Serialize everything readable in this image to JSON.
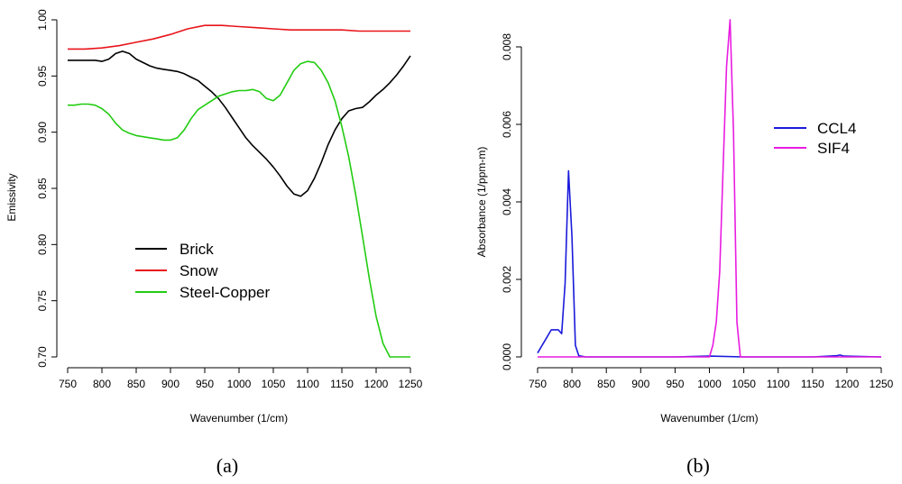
{
  "chart_data": [
    {
      "type": "line",
      "caption": "(a)",
      "xlabel": "Wavenumber (1/cm)",
      "ylabel": "Emissivity",
      "xlim": [
        750,
        1250
      ],
      "ylim": [
        0.7,
        1.0
      ],
      "xticks": [
        "750",
        "800",
        "850",
        "900",
        "950",
        "1000",
        "1050",
        "1100",
        "1150",
        "1200",
        "1250"
      ],
      "yticks": [
        "0.70",
        "0.75",
        "0.80",
        "0.85",
        "0.90",
        "0.95",
        "1.00"
      ],
      "legend_position": "middle-left",
      "series": [
        {
          "name": "Brick",
          "color": "#000000",
          "x": [
            750,
            770,
            790,
            800,
            810,
            820,
            830,
            840,
            850,
            860,
            870,
            880,
            890,
            900,
            910,
            920,
            930,
            940,
            950,
            960,
            970,
            980,
            990,
            1000,
            1010,
            1020,
            1030,
            1040,
            1050,
            1060,
            1070,
            1080,
            1090,
            1100,
            1110,
            1120,
            1130,
            1140,
            1150,
            1160,
            1170,
            1180,
            1190,
            1200,
            1210,
            1220,
            1230,
            1240,
            1250
          ],
          "y": [
            0.964,
            0.964,
            0.964,
            0.963,
            0.965,
            0.97,
            0.972,
            0.97,
            0.965,
            0.962,
            0.959,
            0.957,
            0.956,
            0.955,
            0.954,
            0.952,
            0.949,
            0.946,
            0.941,
            0.936,
            0.93,
            0.922,
            0.913,
            0.904,
            0.895,
            0.888,
            0.882,
            0.876,
            0.869,
            0.861,
            0.852,
            0.845,
            0.843,
            0.848,
            0.859,
            0.873,
            0.889,
            0.902,
            0.912,
            0.919,
            0.921,
            0.922,
            0.927,
            0.933,
            0.938,
            0.944,
            0.951,
            0.959,
            0.968
          ]
        },
        {
          "name": "Snow",
          "color": "#e8141b",
          "x": [
            750,
            775,
            800,
            825,
            850,
            875,
            900,
            925,
            950,
            975,
            1000,
            1025,
            1050,
            1075,
            1100,
            1125,
            1150,
            1175,
            1200,
            1225,
            1250
          ],
          "y": [
            0.974,
            0.974,
            0.975,
            0.977,
            0.98,
            0.983,
            0.987,
            0.992,
            0.995,
            0.995,
            0.994,
            0.993,
            0.992,
            0.991,
            0.991,
            0.991,
            0.991,
            0.99,
            0.99,
            0.99,
            0.99
          ]
        },
        {
          "name": "Steel-Copper",
          "color": "#22cc11",
          "x": [
            750,
            760,
            770,
            780,
            790,
            800,
            810,
            820,
            830,
            840,
            850,
            860,
            870,
            880,
            890,
            900,
            910,
            920,
            930,
            940,
            950,
            960,
            970,
            980,
            990,
            1000,
            1010,
            1020,
            1030,
            1040,
            1050,
            1060,
            1070,
            1080,
            1090,
            1100,
            1110,
            1120,
            1130,
            1140,
            1150,
            1160,
            1170,
            1180,
            1190,
            1200,
            1210,
            1220,
            1230,
            1240,
            1250
          ],
          "y": [
            0.924,
            0.924,
            0.925,
            0.925,
            0.924,
            0.921,
            0.916,
            0.908,
            0.902,
            0.899,
            0.897,
            0.896,
            0.895,
            0.894,
            0.893,
            0.893,
            0.895,
            0.902,
            0.912,
            0.92,
            0.924,
            0.928,
            0.932,
            0.934,
            0.936,
            0.937,
            0.937,
            0.938,
            0.936,
            0.93,
            0.928,
            0.933,
            0.944,
            0.955,
            0.961,
            0.963,
            0.962,
            0.955,
            0.944,
            0.928,
            0.905,
            0.878,
            0.845,
            0.808,
            0.77,
            0.736,
            0.712,
            0.7,
            0.7,
            0.7,
            0.7
          ]
        }
      ]
    },
    {
      "type": "line",
      "caption": "(b)",
      "xlabel": "Wavenumber (1/cm)",
      "ylabel": "Absorbance (1/ppm-m)",
      "xlim": [
        750,
        1250
      ],
      "ylim": [
        0,
        0.008
      ],
      "xticks": [
        "750",
        "800",
        "850",
        "900",
        "950",
        "1000",
        "1050",
        "1100",
        "1150",
        "1200",
        "1250"
      ],
      "yticks": [
        "0.000",
        "0.002",
        "0.004",
        "0.006",
        "0.008"
      ],
      "legend_position": "top-right",
      "series": [
        {
          "name": "CCL4",
          "color": "#1a1adb",
          "x": [
            750,
            760,
            770,
            775,
            780,
            785,
            790,
            795,
            800,
            805,
            810,
            820,
            850,
            950,
            1000,
            1050,
            1150,
            1185,
            1190,
            1195,
            1250
          ],
          "y": [
            0.0001,
            0.0004,
            0.0007,
            0.0007,
            0.0007,
            0.0006,
            0.0019,
            0.0048,
            0.0031,
            0.0003,
            3e-05,
            0.0,
            0.0,
            0.0,
            2e-05,
            0.0,
            0.0,
            3e-05,
            5e-05,
            2e-05,
            0.0
          ]
        },
        {
          "name": "SIF4",
          "color": "#e81ce0",
          "x": [
            750,
            1000,
            1005,
            1010,
            1015,
            1020,
            1025,
            1030,
            1035,
            1040,
            1045,
            1250
          ],
          "y": [
            0.0,
            0.0,
            0.0003,
            0.0009,
            0.0022,
            0.0049,
            0.0075,
            0.0087,
            0.0058,
            0.0009,
            0.0,
            0.0
          ]
        }
      ]
    }
  ]
}
